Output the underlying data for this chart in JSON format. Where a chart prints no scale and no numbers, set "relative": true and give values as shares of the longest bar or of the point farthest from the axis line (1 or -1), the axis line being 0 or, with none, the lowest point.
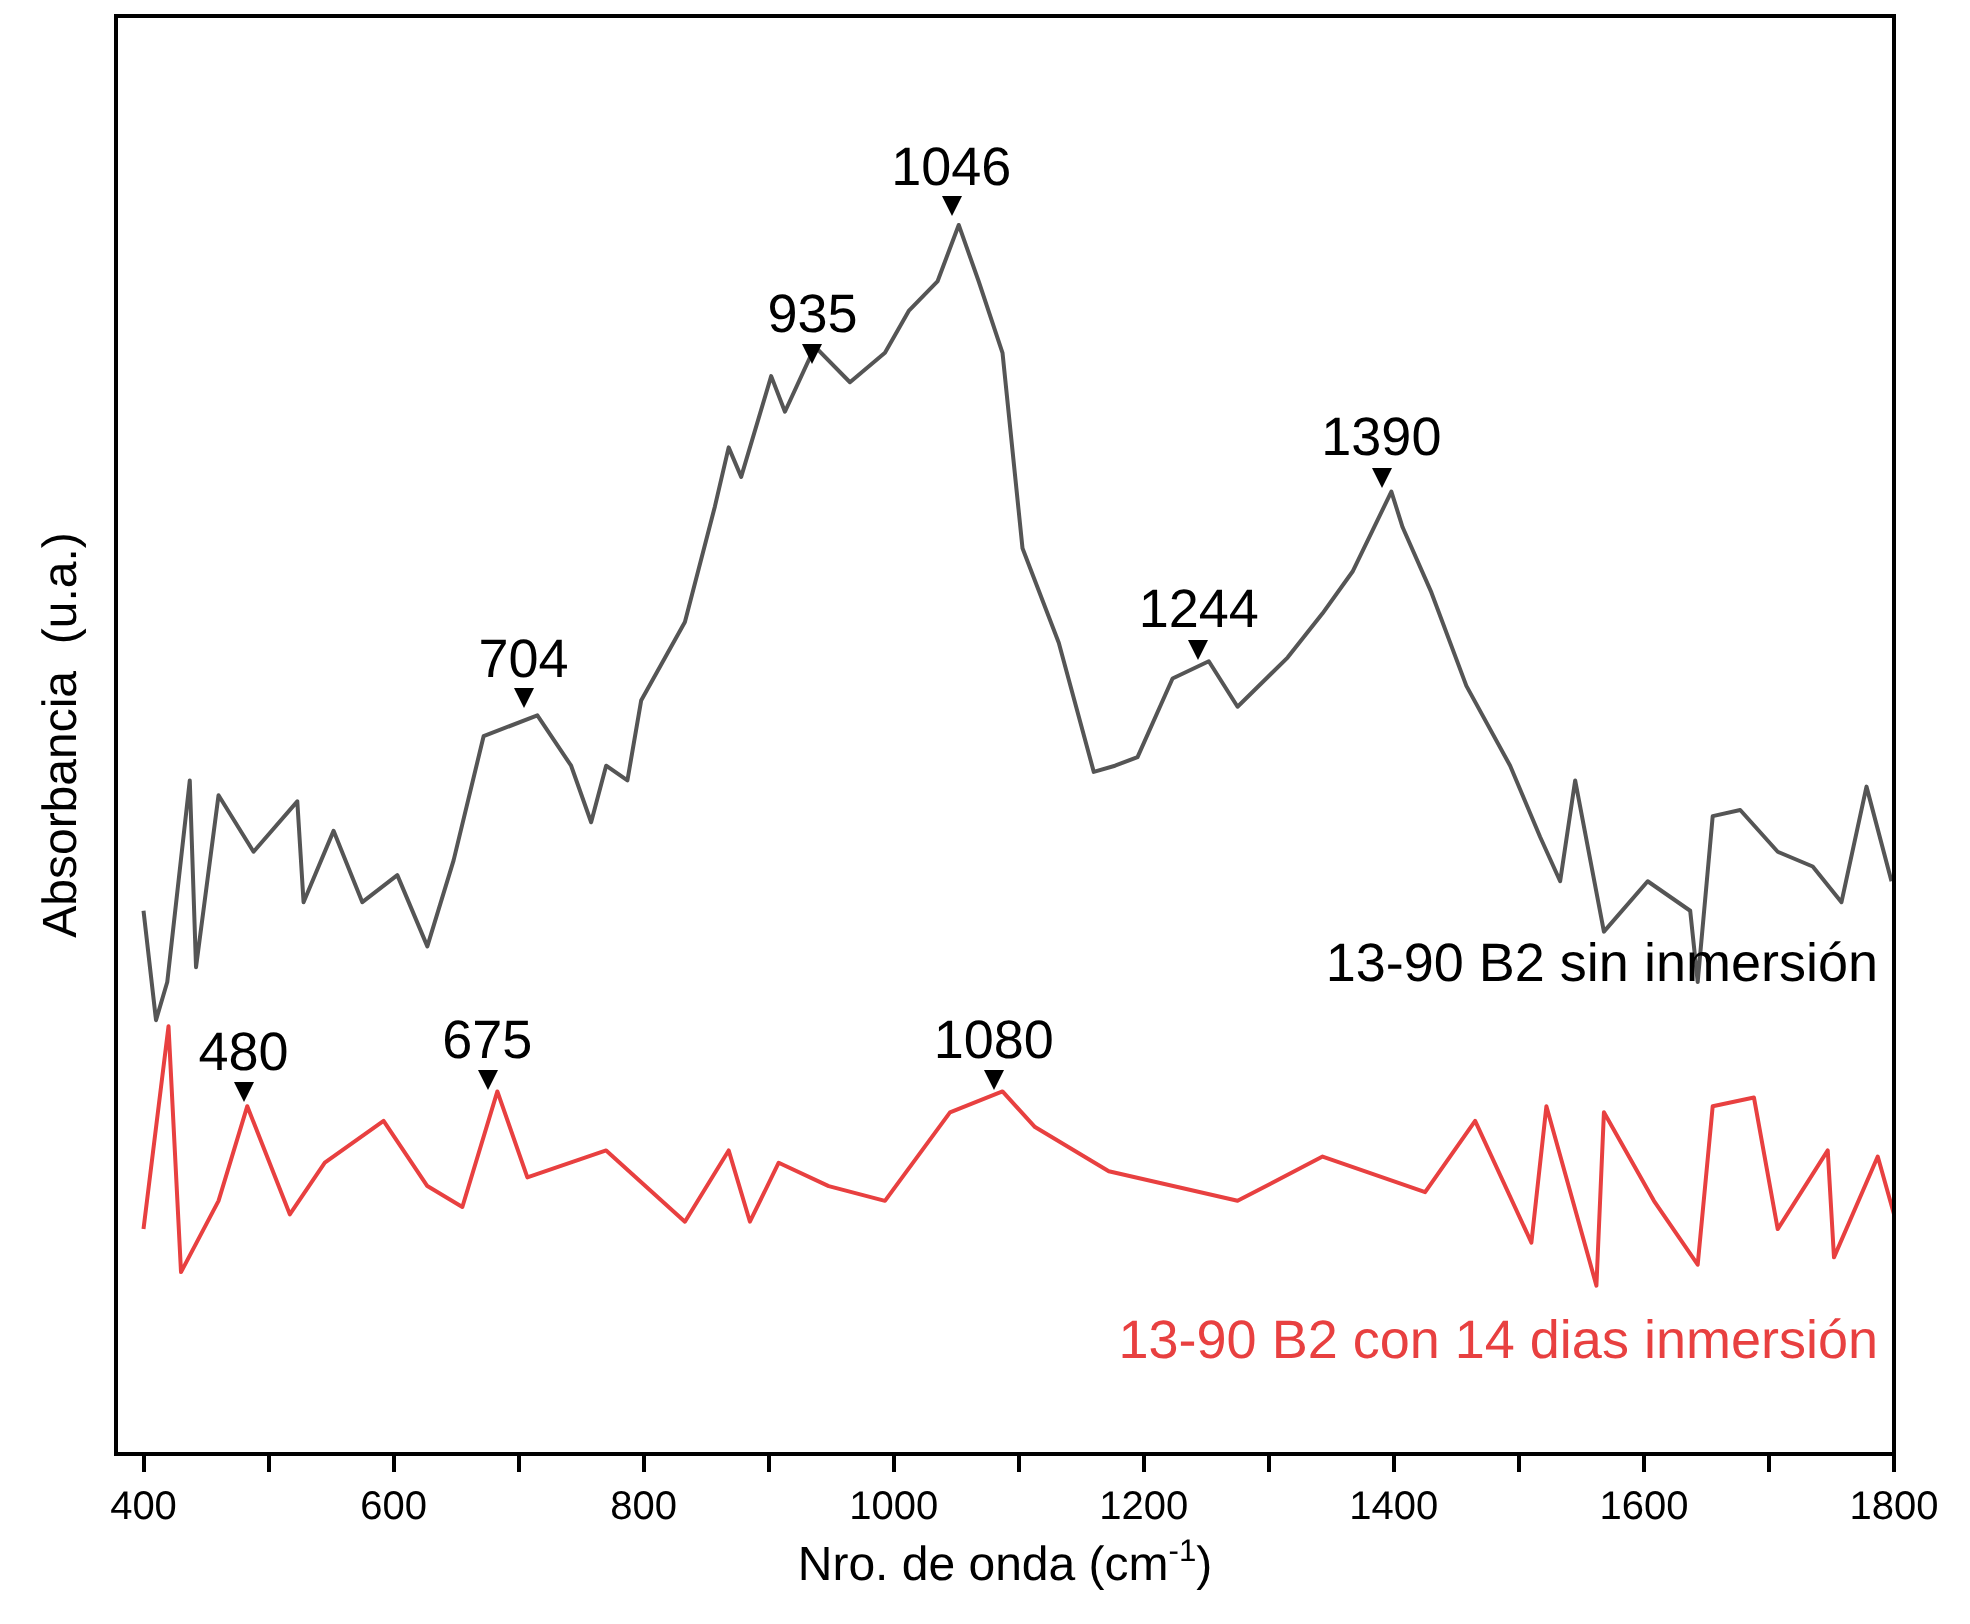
{
  "chart_data": {
    "type": "line",
    "relative": true,
    "xlabel": "Nro. de onda (cm$^{-1}$)",
    "ylabel": "Absorbancia  (u.a.)",
    "xlim": [
      378,
      1800
    ],
    "xticks": [
      400,
      {
        "value": 500,
        "label": null
      },
      600,
      {
        "value": 700,
        "label": null
      },
      800,
      {
        "value": 900,
        "label": null
      },
      1000,
      {
        "value": 1100,
        "label": null
      },
      1200,
      {
        "value": 1300,
        "label": null
      },
      1400,
      {
        "value": 1500,
        "label": null
      },
      1600,
      {
        "value": 1700,
        "label": null
      },
      1800
    ],
    "grid": false,
    "legend": false,
    "marker": "none",
    "line_style": "solid",
    "series": [
      {
        "name": "13-90 B2 sin inmersión",
        "color": "#555555",
        "x": [
          400,
          410,
          419,
          437,
          442,
          460,
          488,
          523,
          528,
          552,
          575,
          603,
          627,
          648,
          672,
          715,
          742,
          758,
          770,
          787,
          798,
          833,
          857,
          868,
          878,
          902,
          913,
          937,
          965,
          993,
          1012,
          1035,
          1052,
          1068,
          1087,
          1103,
          1132,
          1160,
          1177,
          1195,
          1223,
          1252,
          1275,
          1315,
          1343,
          1367,
          1398,
          1407,
          1430,
          1458,
          1493,
          1517,
          1533,
          1545,
          1568,
          1603,
          1637,
          1643,
          1655,
          1677,
          1707,
          1735,
          1758,
          1778,
          1798
        ],
        "values": [
          0.442,
          0.353,
          0.384,
          0.548,
          0.396,
          0.536,
          0.49,
          0.531,
          0.449,
          0.507,
          0.449,
          0.471,
          0.413,
          0.483,
          0.584,
          0.601,
          0.56,
          0.514,
          0.56,
          0.548,
          0.613,
          0.677,
          0.771,
          0.819,
          0.795,
          0.877,
          0.848,
          0.901,
          0.872,
          0.896,
          0.93,
          0.954,
          1.0,
          0.954,
          0.896,
          0.737,
          0.66,
          0.555,
          0.56,
          0.567,
          0.631,
          0.645,
          0.608,
          0.648,
          0.684,
          0.718,
          0.783,
          0.754,
          0.701,
          0.625,
          0.56,
          0.502,
          0.466,
          0.548,
          0.425,
          0.466,
          0.442,
          0.384,
          0.519,
          0.524,
          0.49,
          0.478,
          0.449,
          0.543,
          0.466
        ]
      },
      {
        "name": "13-90 B2 con 14 dias inmersión",
        "color": "#e84040",
        "x": [
          400,
          420,
          430,
          460,
          483,
          517,
          545,
          592,
          627,
          655,
          683,
          707,
          770,
          833,
          868,
          885,
          908,
          948,
          993,
          1045,
          1087,
          1113,
          1172,
          1275,
          1343,
          1425,
          1465,
          1510,
          1522,
          1562,
          1568,
          1608,
          1643,
          1655,
          1688,
          1707,
          1747,
          1752,
          1787,
          1800
        ],
        "values": [
          0.183,
          0.348,
          0.148,
          0.206,
          0.283,
          0.195,
          0.237,
          0.271,
          0.218,
          0.201,
          0.295,
          0.225,
          0.247,
          0.189,
          0.247,
          0.189,
          0.237,
          0.218,
          0.206,
          0.278,
          0.295,
          0.266,
          0.23,
          0.206,
          0.242,
          0.213,
          0.271,
          0.172,
          0.283,
          0.137,
          0.278,
          0.206,
          0.154,
          0.283,
          0.29,
          0.183,
          0.247,
          0.16,
          0.242,
          0.195
        ]
      }
    ],
    "annotations": [
      {
        "text": "704",
        "x": 704,
        "y": 0.6
      },
      {
        "text": "935",
        "x": 935,
        "y": 0.88
      },
      {
        "text": "1046",
        "x": 1046,
        "y": 1.0
      },
      {
        "text": "1244",
        "x": 1244,
        "y": 0.64
      },
      {
        "text": "1390",
        "x": 1390,
        "y": 0.78
      },
      {
        "text": "480",
        "x": 480,
        "y": 0.28
      },
      {
        "text": "675",
        "x": 675,
        "y": 0.29
      },
      {
        "text": "1080",
        "x": 1080,
        "y": 0.29
      }
    ]
  }
}
